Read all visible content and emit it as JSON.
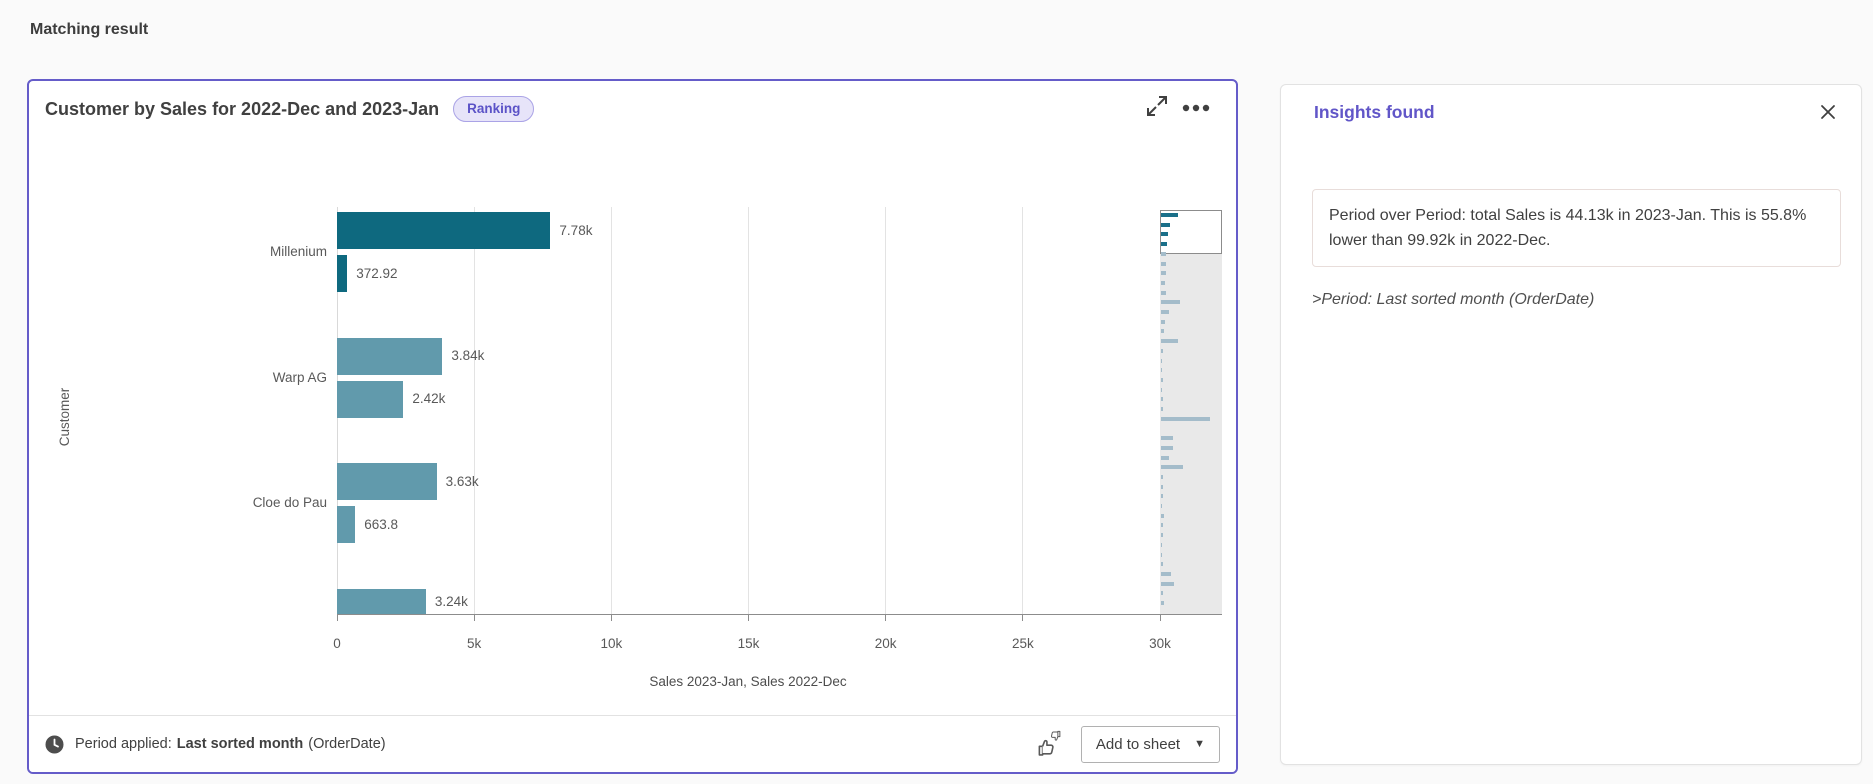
{
  "page": {
    "title": "Matching result"
  },
  "card": {
    "title": "Customer by Sales for 2022-Dec and 2023-Jan",
    "badge_label": "Ranking",
    "border_color": "#655cc9",
    "footer": {
      "period_prefix": "Period applied:",
      "period_value": "Last sorted month",
      "period_field": "(OrderDate)",
      "add_to_sheet_label": "Add to sheet",
      "caret_icon": "▼"
    }
  },
  "chart_data": {
    "type": "bar",
    "orientation": "horizontal",
    "title": "Customer by Sales for 2022-Dec and 2023-Jan",
    "xlabel": "Sales 2023-Jan, Sales 2022-Dec",
    "ylabel": "Customer",
    "xlim": [
      0,
      30000
    ],
    "grid": true,
    "legend": "none",
    "xticks": [
      {
        "value": 0,
        "label": "0"
      },
      {
        "value": 5000,
        "label": "5k"
      },
      {
        "value": 10000,
        "label": "10k"
      },
      {
        "value": 15000,
        "label": "15k"
      },
      {
        "value": 20000,
        "label": "20k"
      },
      {
        "value": 25000,
        "label": "25k"
      },
      {
        "value": 30000,
        "label": "30k"
      }
    ],
    "categories": [
      "Millenium",
      "Warp AG",
      "Cloe do Pau",
      ""
    ],
    "series": [
      {
        "name": "Sales 2023-Jan",
        "values": [
          7780,
          3840,
          3630,
          3240
        ],
        "labels": [
          "7.78k",
          "3.84k",
          "3.63k",
          "3.24k"
        ]
      },
      {
        "name": "Sales 2022-Dec",
        "values": [
          372.92,
          2420,
          663.8,
          null
        ],
        "labels": [
          "372.92",
          "2.42k",
          "663.8",
          null
        ]
      }
    ],
    "highlight_category": "Millenium",
    "colors": {
      "highlight": "#0e697f",
      "normal": "#619aac"
    }
  },
  "minimap": {
    "colors": {
      "dark": "#1a6f89",
      "normal": "#a4bcca"
    },
    "bars": [
      {
        "w": 0.3,
        "dark": true
      },
      {
        "w": 0.15,
        "dark": true
      },
      {
        "w": 0.12,
        "dark": true
      },
      {
        "w": 0.1,
        "dark": true
      },
      {
        "w": 0.09
      },
      {
        "w": 0.09
      },
      {
        "w": 0.08
      },
      {
        "w": 0.07
      },
      {
        "w": 0.08
      },
      {
        "w": 0.33
      },
      {
        "w": 0.13
      },
      {
        "w": 0.07
      },
      {
        "w": 0.06
      },
      {
        "w": 0.3
      },
      {
        "w": 0.03
      },
      {
        "w": 0.02
      },
      {
        "w": 0.02
      },
      {
        "w": 0.03
      },
      {
        "w": 0.02
      },
      {
        "w": 0.03
      },
      {
        "w": 0.03
      },
      {
        "w": 0.85
      },
      {
        "w": 0
      },
      {
        "w": 0.2
      },
      {
        "w": 0.2
      },
      {
        "w": 0.13
      },
      {
        "w": 0.38
      },
      {
        "w": 0.04
      },
      {
        "w": 0.03
      },
      {
        "w": 0.03
      },
      {
        "w": 0.02
      },
      {
        "w": 0.06
      },
      {
        "w": 0.03
      },
      {
        "w": 0.03
      },
      {
        "w": 0.02
      },
      {
        "w": 0.02
      },
      {
        "w": 0.03
      },
      {
        "w": 0.17
      },
      {
        "w": 0.22
      },
      {
        "w": 0.03
      },
      {
        "w": 0.05
      }
    ]
  },
  "insights_panel": {
    "title": "Insights found",
    "insight_text": "Period over Period: total Sales is 44.13k in 2023-Jan. This is 55.8% lower than 99.92k in 2022-Dec.",
    "period_note": ">Period: Last sorted month (OrderDate)"
  }
}
